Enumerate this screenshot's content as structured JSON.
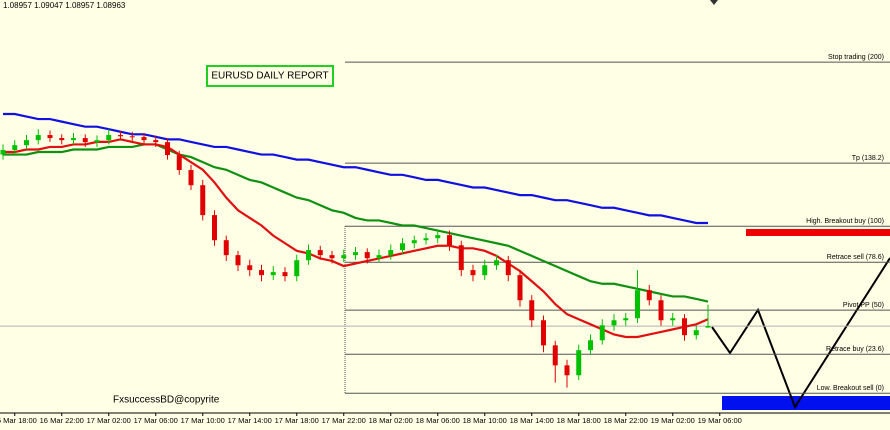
{
  "chart_data": {
    "type": "candlestick",
    "ohlc_label": "1.08957 1.09047 1.08957 1.08963",
    "title": "EURUSD DAILY REPORT",
    "watermark": "FxsuccessBD@copyrite",
    "categories": [
      null,
      "16 Mar 18:00",
      null,
      null,
      null,
      "16 Mar 22:00",
      null,
      null,
      null,
      "17 Mar 02:00",
      null,
      null,
      null,
      "17 Mar 06:00",
      null,
      null,
      null,
      "17 Mar 10:00",
      null,
      null,
      null,
      "17 Mar 14:00",
      null,
      null,
      null,
      "17 Mar 18:00",
      null,
      null,
      null,
      "17 Mar 22:00",
      null,
      null,
      null,
      "18 Mar 02:00",
      null,
      null,
      null,
      "18 Mar 06:00",
      null,
      null,
      null,
      "18 Mar 10:00",
      null,
      null,
      null,
      "18 Mar 14:00",
      null,
      null,
      null,
      "18 Mar 18:00",
      null,
      null,
      null,
      "18 Mar 22:00",
      null,
      null,
      null,
      "19 Mar 02:00",
      null,
      null,
      null,
      "19 Mar 06:00"
    ],
    "open": [
      1.0964,
      1.09658,
      1.09677,
      1.09697,
      1.09717,
      1.09705,
      1.09697,
      1.09705,
      1.09689,
      1.09697,
      1.09717,
      1.09712,
      1.09709,
      1.09697,
      1.09689,
      1.09638,
      1.09579,
      1.09519,
      1.09401,
      1.09302,
      1.09243,
      1.09203,
      1.09184,
      1.09164,
      1.09176,
      1.0916,
      1.09223,
      1.09263,
      1.09243,
      1.09231,
      1.09243,
      1.09255,
      1.09231,
      1.09243,
      1.09263,
      1.0929,
      1.09302,
      1.0931,
      1.09322,
      1.09282,
      1.09184,
      1.09164,
      1.09203,
      1.09223,
      1.09164,
      1.09065,
      1.08986,
      1.08887,
      1.08808,
      1.08769,
      1.08868,
      1.08907,
      1.08966,
      1.08986,
      1.08994,
      1.09105,
      1.09065,
      1.08986,
      1.08994,
      1.08927,
      1.08957,
      null
    ],
    "high": [
      1.0968,
      1.09697,
      1.09717,
      1.0974,
      1.09735,
      1.0972,
      1.09725,
      1.0972,
      1.09715,
      1.0974,
      1.09735,
      1.0973,
      1.09725,
      1.09715,
      1.09705,
      1.09655,
      1.096,
      1.0954,
      1.0942,
      1.0932,
      1.0926,
      1.09225,
      1.09205,
      1.092,
      1.09195,
      1.09245,
      1.09285,
      1.0928,
      1.0926,
      1.09265,
      1.09275,
      1.0927,
      1.09265,
      1.09285,
      1.0931,
      1.0932,
      1.0933,
      1.09345,
      1.0934,
      1.093,
      1.09205,
      1.09225,
      1.09245,
      1.0924,
      1.09185,
      1.09085,
      1.09005,
      1.08905,
      1.0883,
      1.0889,
      1.0893,
      1.0899,
      1.0901,
      1.09015,
      1.09184,
      1.09125,
      1.09085,
      1.09015,
      1.0901,
      1.08965,
      1.09047,
      null
    ],
    "low": [
      1.0962,
      1.0964,
      1.0966,
      1.0968,
      1.0969,
      1.0968,
      1.0968,
      1.0967,
      1.0967,
      1.0968,
      1.09695,
      1.0969,
      1.0968,
      1.0967,
      1.0962,
      1.0956,
      1.095,
      1.0938,
      1.0928,
      1.0922,
      1.0918,
      1.0916,
      1.0914,
      1.09145,
      1.0914,
      1.0914,
      1.09205,
      1.09225,
      1.0921,
      1.09215,
      1.09225,
      1.0921,
      1.09215,
      1.09225,
      1.09245,
      1.0927,
      1.09285,
      1.0929,
      1.0926,
      1.0916,
      1.0914,
      1.09145,
      1.09185,
      1.0914,
      1.0904,
      1.0896,
      1.0886,
      1.0874,
      1.0872,
      1.0875,
      1.0885,
      1.0889,
      1.08945,
      1.08965,
      1.08975,
      1.09045,
      1.08965,
      1.08965,
      1.08905,
      1.0891,
      1.08957,
      null
    ],
    "close": [
      1.09658,
      1.09677,
      1.09697,
      1.09717,
      1.09705,
      1.09697,
      1.09705,
      1.09689,
      1.09697,
      1.09717,
      1.09712,
      1.09709,
      1.09697,
      1.09689,
      1.09638,
      1.09579,
      1.09519,
      1.09401,
      1.09302,
      1.09243,
      1.09203,
      1.09184,
      1.09164,
      1.09176,
      1.0916,
      1.09223,
      1.09263,
      1.09243,
      1.09231,
      1.09243,
      1.09255,
      1.09231,
      1.09243,
      1.09263,
      1.0929,
      1.09302,
      1.0931,
      1.09322,
      1.09282,
      1.09184,
      1.09164,
      1.09203,
      1.09223,
      1.09164,
      1.09065,
      1.08986,
      1.08887,
      1.08808,
      1.08769,
      1.08868,
      1.08907,
      1.08966,
      1.08986,
      1.08994,
      1.09105,
      1.09065,
      1.08986,
      1.08994,
      1.08927,
      1.08947,
      1.08963,
      null
    ],
    "up_color": "#00c000",
    "down_color": "#e00000",
    "series": [
      {
        "color": "#1010e0",
        "values": [
          1.098,
          1.098,
          1.0979,
          1.0978,
          1.0978,
          1.0977,
          1.0976,
          1.0975,
          1.0975,
          1.0974,
          1.0973,
          1.0972,
          1.0972,
          1.0971,
          1.097,
          1.097,
          1.0969,
          1.0968,
          1.0967,
          1.0967,
          1.0966,
          1.0965,
          1.0964,
          1.0964,
          1.0963,
          1.0962,
          1.0962,
          1.0961,
          1.096,
          1.0959,
          1.0959,
          1.0958,
          1.0957,
          1.0956,
          1.0956,
          1.0955,
          1.0954,
          1.0954,
          1.0953,
          1.0952,
          1.0951,
          1.0951,
          1.095,
          1.0949,
          1.0948,
          1.0948,
          1.0947,
          1.0946,
          1.0946,
          1.0945,
          1.0944,
          1.0943,
          1.0943,
          1.0942,
          1.0941,
          1.094,
          1.094,
          1.0939,
          1.0938,
          1.0937,
          1.0937,
          null
        ]
      },
      {
        "color": "#109010",
        "values": [
          1.0964,
          1.0964,
          1.0964,
          1.0965,
          1.0965,
          1.0965,
          1.0966,
          1.0966,
          1.0966,
          1.0967,
          1.0967,
          1.0967,
          1.0968,
          1.0968,
          1.0966,
          1.0964,
          1.0963,
          1.0961,
          1.0959,
          1.0958,
          1.0956,
          1.0954,
          1.0953,
          1.0951,
          1.0949,
          1.0947,
          1.0946,
          1.0944,
          1.0942,
          1.0941,
          1.0939,
          1.0938,
          1.0938,
          1.0937,
          1.0936,
          1.0936,
          1.0935,
          1.0934,
          1.0933,
          1.0932,
          1.0931,
          1.093,
          1.0929,
          1.0928,
          1.0926,
          1.0924,
          1.0922,
          1.092,
          1.0918,
          1.0916,
          1.0914,
          1.0913,
          1.0913,
          1.0912,
          1.0911,
          1.091,
          1.0909,
          1.0908,
          1.0908,
          1.0907,
          1.0906,
          null
        ]
      },
      {
        "color": "#e01010",
        "values": [
          1.0965,
          1.0965,
          1.0966,
          1.0966,
          1.0967,
          1.0967,
          1.0968,
          1.0968,
          1.0969,
          1.0969,
          1.097,
          1.0969,
          1.0968,
          1.0968,
          1.0967,
          1.0964,
          1.0961,
          1.0958,
          1.0953,
          1.0947,
          1.0942,
          1.0939,
          1.0936,
          1.0932,
          1.0929,
          1.0926,
          1.0925,
          1.0923,
          1.0922,
          1.092,
          1.0921,
          1.0922,
          1.0923,
          1.0924,
          1.0925,
          1.0926,
          1.0927,
          1.0928,
          1.0928,
          1.0927,
          1.0927,
          1.0926,
          1.0924,
          1.0921,
          1.0918,
          1.0914,
          1.091,
          1.0905,
          1.0901,
          1.0899,
          1.0897,
          1.0895,
          1.0893,
          1.0892,
          1.0892,
          1.0893,
          1.0894,
          1.0895,
          1.0896,
          1.0897,
          1.0899,
          null
        ]
      }
    ],
    "levels": [
      {
        "label": "Stop trading (200)",
        "value": 1.10005
      },
      {
        "label": "Tp (138.2)",
        "value": 1.09606
      },
      {
        "label": "High. Breakout buy (100)",
        "value": 1.09357
      },
      {
        "label": "Retrace sell (78.6)",
        "value": 1.09215
      },
      {
        "label": "Pivot PP (50)",
        "value": 1.09026
      },
      {
        "label": "Retrace buy (23.6)",
        "value": 1.08852
      },
      {
        "label": "Low. Breakout sell (0)",
        "value": 1.08698
      }
    ],
    "ylim": [
      1.0862,
      1.1025
    ]
  }
}
